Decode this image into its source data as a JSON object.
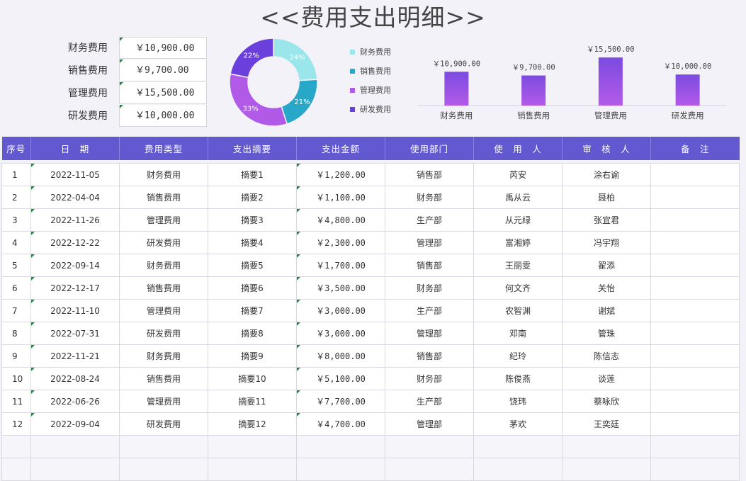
{
  "title": "<<费用支出明细>>",
  "summary": [
    {
      "label": "财务费用",
      "value": "￥10,900.00"
    },
    {
      "label": "销售费用",
      "value": "￥9,700.00"
    },
    {
      "label": "管理费用",
      "value": "￥15,500.00"
    },
    {
      "label": "研发费用",
      "value": "￥10,000.00"
    }
  ],
  "colors": {
    "accent": "#6259d1",
    "cyan": "#9be6ea",
    "teal": "#27a8c9",
    "violet": "#b25ae8",
    "indigo": "#6a3fdb"
  },
  "chart_data": [
    {
      "type": "pie",
      "categories": [
        "财务费用",
        "销售费用",
        "管理费用",
        "研发费用"
      ],
      "values": [
        24,
        21,
        33,
        22
      ],
      "labels": [
        "24%",
        "21%",
        "33%",
        "22%"
      ],
      "colors": [
        "#9be6ea",
        "#27a8c9",
        "#b25ae8",
        "#6a3fdb"
      ],
      "legend": "right"
    },
    {
      "type": "bar",
      "categories": [
        "财务费用",
        "销售费用",
        "管理费用",
        "研发费用"
      ],
      "values": [
        10900,
        9700,
        15500,
        10000
      ],
      "labels": [
        "￥10,900.00",
        "￥9,700.00",
        "￥15,500.00",
        "￥10,000.00"
      ],
      "ylim": [
        0,
        16000
      ],
      "grid": false
    }
  ],
  "table": {
    "headers": [
      "序号",
      "日　期",
      "费用类型",
      "支出摘要",
      "支出金额",
      "使用部门",
      "使　用　人",
      "审　核　人",
      "备　注"
    ],
    "rows": [
      [
        "1",
        "2022-11-05",
        "财务费用",
        "摘要1",
        "￥1,200.00",
        "销售部",
        "芮安",
        "涂右谕",
        ""
      ],
      [
        "2",
        "2022-04-04",
        "销售费用",
        "摘要2",
        "￥1,100.00",
        "财务部",
        "禹从云",
        "聂柏",
        ""
      ],
      [
        "3",
        "2022-11-26",
        "管理费用",
        "摘要3",
        "￥4,800.00",
        "生产部",
        "从元绿",
        "张宜君",
        ""
      ],
      [
        "4",
        "2022-12-22",
        "研发费用",
        "摘要4",
        "￥2,300.00",
        "管理部",
        "富湘婷",
        "冯宇翔",
        ""
      ],
      [
        "5",
        "2022-09-14",
        "财务费用",
        "摘要5",
        "￥1,700.00",
        "销售部",
        "王丽雯",
        "翟添",
        ""
      ],
      [
        "6",
        "2022-12-17",
        "销售费用",
        "摘要6",
        "￥3,500.00",
        "财务部",
        "何文齐",
        "关怡",
        ""
      ],
      [
        "7",
        "2022-11-10",
        "管理费用",
        "摘要7",
        "￥3,000.00",
        "生产部",
        "农智渊",
        "谢斌",
        ""
      ],
      [
        "8",
        "2022-07-31",
        "研发费用",
        "摘要8",
        "￥3,000.00",
        "管理部",
        "邓南",
        "管珠",
        ""
      ],
      [
        "9",
        "2022-11-21",
        "财务费用",
        "摘要9",
        "￥8,000.00",
        "销售部",
        "纪玲",
        "陈信志",
        ""
      ],
      [
        "10",
        "2022-08-24",
        "销售费用",
        "摘要10",
        "￥5,100.00",
        "财务部",
        "陈俊燕",
        "谈莲",
        ""
      ],
      [
        "11",
        "2022-06-26",
        "管理费用",
        "摘要11",
        "￥7,700.00",
        "生产部",
        "饶玮",
        "蔡咏欣",
        ""
      ],
      [
        "12",
        "2022-09-04",
        "研发费用",
        "摘要12",
        "￥4,700.00",
        "管理部",
        "茅欢",
        "王奕廷",
        ""
      ]
    ]
  }
}
